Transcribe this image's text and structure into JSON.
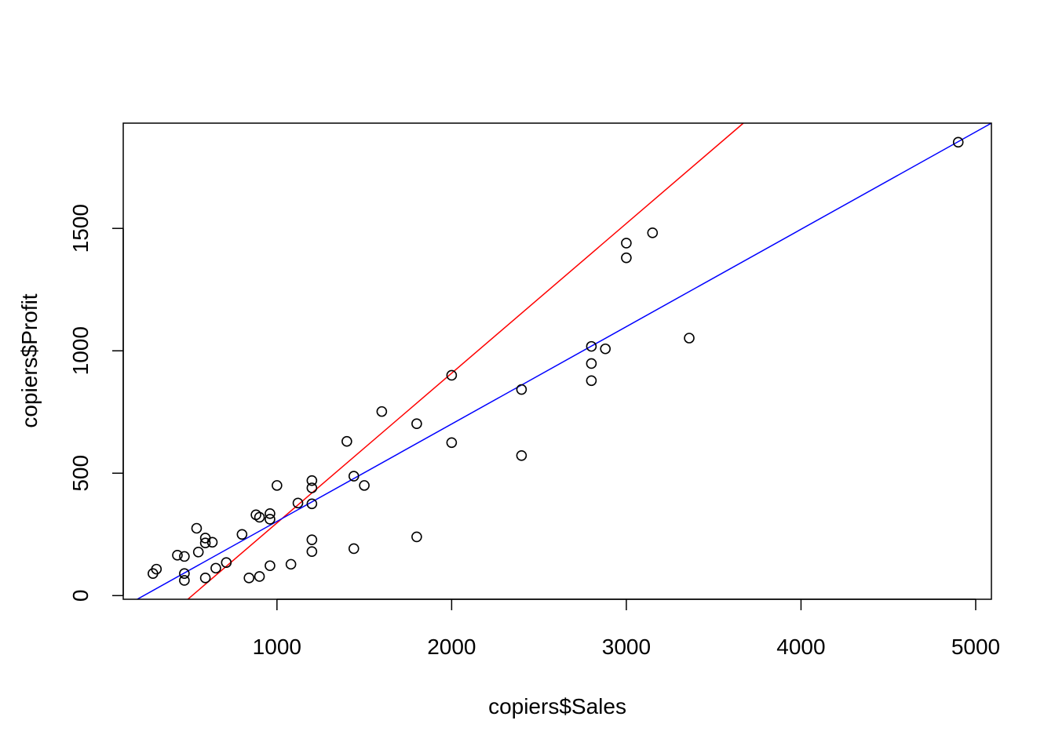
{
  "chart_data": {
    "type": "scatter",
    "title": "",
    "xlabel": "copiers$Sales",
    "ylabel": "copiers$Profit",
    "xlim": [
      120,
      5090
    ],
    "ylim": [
      -15,
      1930
    ],
    "x_ticks": [
      1000,
      2000,
      3000,
      4000,
      5000
    ],
    "y_ticks": [
      0,
      500,
      1000,
      1500
    ],
    "grid": false,
    "legend": "none",
    "points": [
      {
        "x": 290,
        "y": 90
      },
      {
        "x": 310,
        "y": 108
      },
      {
        "x": 430,
        "y": 165
      },
      {
        "x": 470,
        "y": 160
      },
      {
        "x": 470,
        "y": 90
      },
      {
        "x": 470,
        "y": 62
      },
      {
        "x": 540,
        "y": 275
      },
      {
        "x": 550,
        "y": 178
      },
      {
        "x": 590,
        "y": 235
      },
      {
        "x": 590,
        "y": 215
      },
      {
        "x": 590,
        "y": 72
      },
      {
        "x": 630,
        "y": 218
      },
      {
        "x": 650,
        "y": 112
      },
      {
        "x": 710,
        "y": 135
      },
      {
        "x": 800,
        "y": 250
      },
      {
        "x": 840,
        "y": 72
      },
      {
        "x": 880,
        "y": 330
      },
      {
        "x": 900,
        "y": 320
      },
      {
        "x": 900,
        "y": 78
      },
      {
        "x": 960,
        "y": 335
      },
      {
        "x": 960,
        "y": 312
      },
      {
        "x": 960,
        "y": 122
      },
      {
        "x": 1000,
        "y": 450
      },
      {
        "x": 1080,
        "y": 128
      },
      {
        "x": 1120,
        "y": 378
      },
      {
        "x": 1200,
        "y": 470
      },
      {
        "x": 1200,
        "y": 440
      },
      {
        "x": 1200,
        "y": 375
      },
      {
        "x": 1200,
        "y": 228
      },
      {
        "x": 1200,
        "y": 180
      },
      {
        "x": 1400,
        "y": 630
      },
      {
        "x": 1440,
        "y": 488
      },
      {
        "x": 1440,
        "y": 192
      },
      {
        "x": 1500,
        "y": 450
      },
      {
        "x": 1600,
        "y": 752
      },
      {
        "x": 1800,
        "y": 702
      },
      {
        "x": 1800,
        "y": 240
      },
      {
        "x": 2000,
        "y": 900
      },
      {
        "x": 2000,
        "y": 625
      },
      {
        "x": 2400,
        "y": 842
      },
      {
        "x": 2400,
        "y": 572
      },
      {
        "x": 2800,
        "y": 1018
      },
      {
        "x": 2800,
        "y": 948
      },
      {
        "x": 2800,
        "y": 878
      },
      {
        "x": 2880,
        "y": 1008
      },
      {
        "x": 3000,
        "y": 1440
      },
      {
        "x": 3000,
        "y": 1380
      },
      {
        "x": 3150,
        "y": 1482
      },
      {
        "x": 3360,
        "y": 1052
      },
      {
        "x": 4900,
        "y": 1852
      }
    ],
    "lines": [
      {
        "color": "#ff0000",
        "x1": 490,
        "y1": -15,
        "x2": 3670,
        "y2": 1930
      },
      {
        "color": "#0000ff",
        "x1": 200,
        "y1": -15,
        "x2": 5090,
        "y2": 1930
      }
    ],
    "point_color": "#000000"
  }
}
